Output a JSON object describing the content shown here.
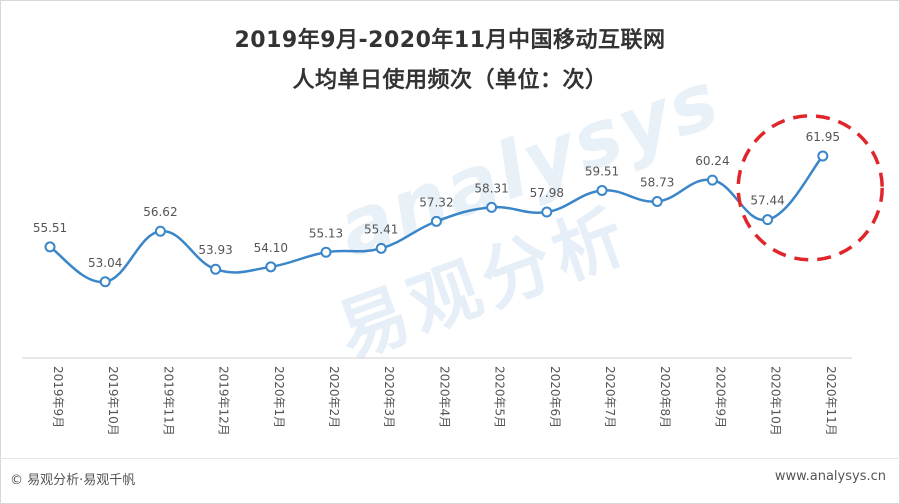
{
  "chart_data": {
    "type": "line",
    "title": "2019年9月-2020年11月中国移动互联网",
    "subtitle": "人均单日使用频次（单位：次）",
    "categories": [
      "2019年9月",
      "2019年10月",
      "2019年11月",
      "2019年12月",
      "2020年1月",
      "2020年2月",
      "2020年3月",
      "2020年4月",
      "2020年5月",
      "2020年6月",
      "2020年7月",
      "2020年8月",
      "2020年9月",
      "2020年10月",
      "2020年11月"
    ],
    "series": [
      {
        "values": [
          55.51,
          53.04,
          56.62,
          53.93,
          54.1,
          55.13,
          55.41,
          57.32,
          58.31,
          57.98,
          59.51,
          58.73,
          60.24,
          57.44,
          61.95
        ]
      }
    ],
    "ylim": [
      47.5,
      64.5
    ],
    "grid": false,
    "legend": "none",
    "highlight_categories": [
      "2020年10月",
      "2020年11月"
    ],
    "colors": {
      "line": "#3a86c8",
      "marker_fill": "#ffffff",
      "highlight": "#e0262a",
      "axis": "#d0d0d0",
      "label": "#555555"
    }
  },
  "watermark": {
    "text": "易观分析",
    "en": "analysys"
  },
  "footer": {
    "left": "© 易观分析·易观千帆",
    "right": "www.analysys.cn"
  }
}
